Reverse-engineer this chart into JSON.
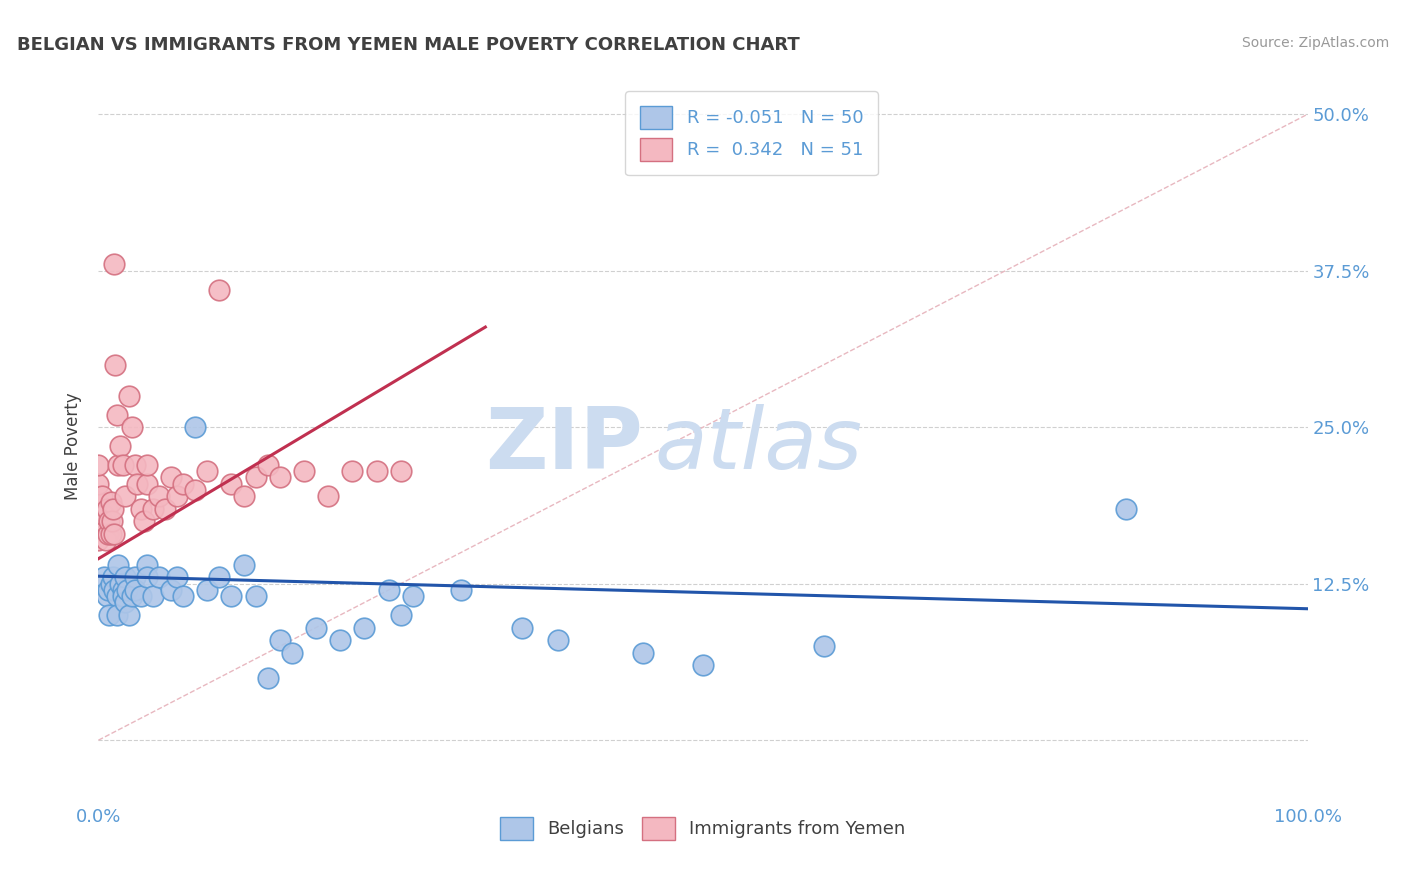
{
  "title": "BELGIAN VS IMMIGRANTS FROM YEMEN MALE POVERTY CORRELATION CHART",
  "source": "Source: ZipAtlas.com",
  "ylabel": "Male Poverty",
  "xlim": [
    0,
    1.0
  ],
  "ylim": [
    -0.05,
    0.52
  ],
  "yticks": [
    0.0,
    0.125,
    0.25,
    0.375,
    0.5
  ],
  "yticklabels": [
    "",
    "12.5%",
    "25.0%",
    "37.5%",
    "50.0%"
  ],
  "watermark_zip": "ZIP",
  "watermark_atlas": "atlas",
  "blue_dot_color": "#aec6e8",
  "blue_dot_edge": "#5b9bd5",
  "pink_dot_color": "#f4b8c1",
  "pink_dot_edge": "#d47080",
  "blue_line_color": "#2255aa",
  "pink_line_color": "#c03050",
  "diag_line_color": "#e8b8c0",
  "title_color": "#404040",
  "right_label_color": "#5b9bd5",
  "bottom_label_color": "#5b9bd5",
  "watermark_color": "#ccdcf0",
  "grid_color": "#d0d0d0",
  "blue_scatter": [
    [
      0.005,
      0.13
    ],
    [
      0.007,
      0.115
    ],
    [
      0.008,
      0.12
    ],
    [
      0.009,
      0.1
    ],
    [
      0.01,
      0.125
    ],
    [
      0.012,
      0.13
    ],
    [
      0.013,
      0.12
    ],
    [
      0.015,
      0.115
    ],
    [
      0.015,
      0.1
    ],
    [
      0.016,
      0.14
    ],
    [
      0.018,
      0.125
    ],
    [
      0.02,
      0.12
    ],
    [
      0.02,
      0.115
    ],
    [
      0.022,
      0.13
    ],
    [
      0.022,
      0.11
    ],
    [
      0.024,
      0.12
    ],
    [
      0.025,
      0.1
    ],
    [
      0.028,
      0.115
    ],
    [
      0.03,
      0.13
    ],
    [
      0.03,
      0.12
    ],
    [
      0.035,
      0.115
    ],
    [
      0.04,
      0.14
    ],
    [
      0.04,
      0.13
    ],
    [
      0.045,
      0.115
    ],
    [
      0.05,
      0.13
    ],
    [
      0.06,
      0.12
    ],
    [
      0.065,
      0.13
    ],
    [
      0.07,
      0.115
    ],
    [
      0.08,
      0.25
    ],
    [
      0.09,
      0.12
    ],
    [
      0.1,
      0.13
    ],
    [
      0.11,
      0.115
    ],
    [
      0.12,
      0.14
    ],
    [
      0.13,
      0.115
    ],
    [
      0.14,
      0.05
    ],
    [
      0.15,
      0.08
    ],
    [
      0.16,
      0.07
    ],
    [
      0.18,
      0.09
    ],
    [
      0.2,
      0.08
    ],
    [
      0.22,
      0.09
    ],
    [
      0.24,
      0.12
    ],
    [
      0.25,
      0.1
    ],
    [
      0.26,
      0.115
    ],
    [
      0.3,
      0.12
    ],
    [
      0.35,
      0.09
    ],
    [
      0.38,
      0.08
    ],
    [
      0.45,
      0.07
    ],
    [
      0.5,
      0.06
    ],
    [
      0.6,
      0.075
    ],
    [
      0.85,
      0.185
    ]
  ],
  "pink_scatter": [
    [
      0.0,
      0.16
    ],
    [
      0.0,
      0.19
    ],
    [
      0.0,
      0.205
    ],
    [
      0.0,
      0.22
    ],
    [
      0.002,
      0.175
    ],
    [
      0.003,
      0.195
    ],
    [
      0.004,
      0.175
    ],
    [
      0.005,
      0.18
    ],
    [
      0.006,
      0.16
    ],
    [
      0.007,
      0.185
    ],
    [
      0.008,
      0.165
    ],
    [
      0.009,
      0.175
    ],
    [
      0.01,
      0.19
    ],
    [
      0.01,
      0.165
    ],
    [
      0.011,
      0.175
    ],
    [
      0.012,
      0.185
    ],
    [
      0.013,
      0.165
    ],
    [
      0.013,
      0.38
    ],
    [
      0.014,
      0.3
    ],
    [
      0.015,
      0.26
    ],
    [
      0.016,
      0.22
    ],
    [
      0.018,
      0.235
    ],
    [
      0.02,
      0.22
    ],
    [
      0.022,
      0.195
    ],
    [
      0.025,
      0.275
    ],
    [
      0.028,
      0.25
    ],
    [
      0.03,
      0.22
    ],
    [
      0.032,
      0.205
    ],
    [
      0.035,
      0.185
    ],
    [
      0.038,
      0.175
    ],
    [
      0.04,
      0.205
    ],
    [
      0.04,
      0.22
    ],
    [
      0.045,
      0.185
    ],
    [
      0.05,
      0.195
    ],
    [
      0.055,
      0.185
    ],
    [
      0.06,
      0.21
    ],
    [
      0.065,
      0.195
    ],
    [
      0.07,
      0.205
    ],
    [
      0.08,
      0.2
    ],
    [
      0.09,
      0.215
    ],
    [
      0.1,
      0.36
    ],
    [
      0.11,
      0.205
    ],
    [
      0.12,
      0.195
    ],
    [
      0.13,
      0.21
    ],
    [
      0.14,
      0.22
    ],
    [
      0.15,
      0.21
    ],
    [
      0.17,
      0.215
    ],
    [
      0.19,
      0.195
    ],
    [
      0.21,
      0.215
    ],
    [
      0.23,
      0.215
    ],
    [
      0.25,
      0.215
    ]
  ],
  "blue_trend_x": [
    0.0,
    1.0
  ],
  "blue_trend_y": [
    0.131,
    0.105
  ],
  "pink_trend_x": [
    0.0,
    0.32
  ],
  "pink_trend_y": [
    0.145,
    0.33
  ]
}
